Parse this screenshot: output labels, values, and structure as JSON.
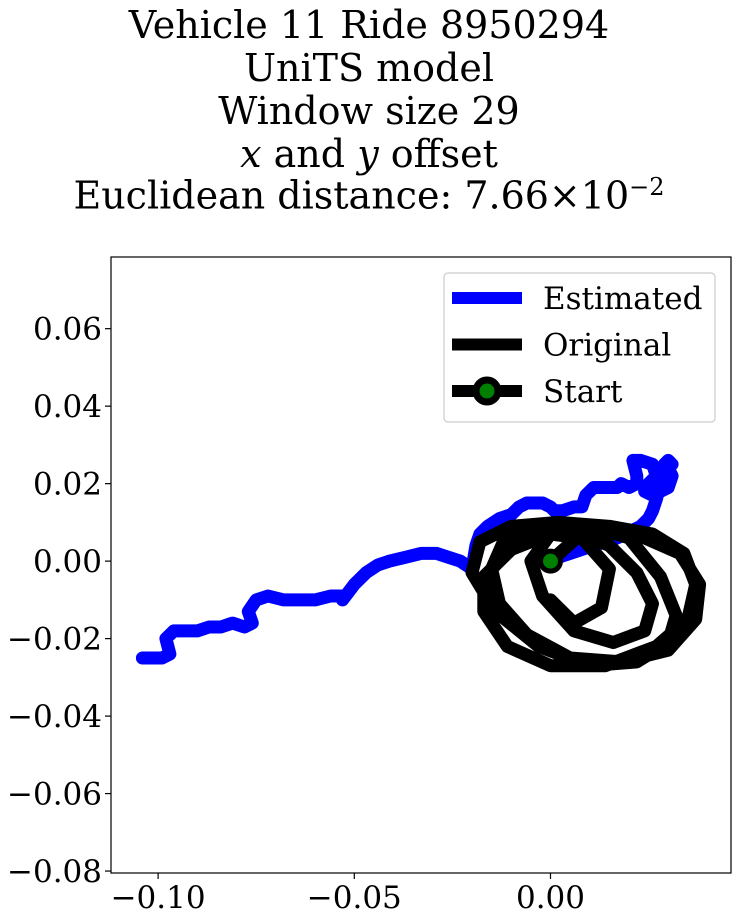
{
  "chart_data": {
    "type": "line",
    "title_lines": [
      "Vehicle 11 Ride 8950294",
      "UniTS model",
      "Window size 29",
      {
        "pre_math": "x",
        "middle": " and ",
        "post_math": "y",
        "suffix": " offset"
      },
      {
        "text": "Euclidean distance: 7.66×10",
        "sup": "−2"
      }
    ],
    "xlabel": "",
    "ylabel": "",
    "xlim": [
      -0.112,
      0.046
    ],
    "ylim": [
      -0.0805,
      0.0785
    ],
    "x_ticks": [
      -0.1,
      -0.05,
      0.0
    ],
    "x_tick_labels": [
      "−0.10",
      "−0.05",
      "0.00"
    ],
    "y_ticks": [
      0.06,
      0.04,
      0.02,
      0.0,
      -0.02,
      -0.04,
      -0.06,
      -0.08
    ],
    "y_tick_labels": [
      "0.06",
      "0.04",
      "0.02",
      "0.00",
      "−0.02",
      "−0.04",
      "−0.06",
      "−0.08"
    ],
    "grid": false,
    "legend_position": "top-right",
    "legend": [
      {
        "label": "Estimated",
        "color": "#0000ff",
        "style": "line"
      },
      {
        "label": "Original",
        "color": "#000000",
        "style": "line"
      },
      {
        "label": "Start",
        "color": "#000000",
        "marker_color": "#008000",
        "style": "line-marker"
      }
    ],
    "series": [
      {
        "name": "Estimated",
        "color": "#0000ff",
        "x": [
          -0.104,
          -0.099,
          -0.097,
          -0.098,
          -0.096,
          -0.093,
          -0.09,
          -0.087,
          -0.084,
          -0.081,
          -0.078,
          -0.076,
          -0.077,
          -0.075,
          -0.072,
          -0.068,
          -0.064,
          -0.06,
          -0.056,
          -0.053,
          -0.053,
          -0.05,
          -0.047,
          -0.044,
          -0.041,
          -0.037,
          -0.033,
          -0.029,
          -0.026,
          -0.023,
          -0.02,
          -0.019,
          -0.018,
          -0.016,
          -0.013,
          -0.01,
          -0.008,
          -0.006,
          -0.004,
          -0.002,
          0.0,
          0.001,
          0.003,
          0.006,
          0.008,
          0.009,
          0.011,
          0.014,
          0.017,
          0.018,
          0.02,
          0.022,
          0.022,
          0.021,
          0.023,
          0.026,
          0.027,
          0.025,
          0.024,
          0.026,
          0.028,
          0.03,
          0.031,
          0.03,
          0.029,
          0.03,
          0.031,
          0.029,
          0.028,
          0.027,
          0.026,
          0.025,
          0.024,
          0.023,
          0.021,
          0.019,
          0.017,
          0.014,
          0.011,
          0.008,
          0.005,
          0.002,
          0.0
        ],
        "y": [
          -0.025,
          -0.025,
          -0.024,
          -0.02,
          -0.018,
          -0.018,
          -0.018,
          -0.017,
          -0.017,
          -0.016,
          -0.017,
          -0.016,
          -0.013,
          -0.01,
          -0.009,
          -0.01,
          -0.01,
          -0.01,
          -0.009,
          -0.009,
          -0.01,
          -0.006,
          -0.003,
          -0.001,
          0.0,
          0.001,
          0.002,
          0.002,
          0.001,
          0.0,
          -0.002,
          0.004,
          0.007,
          0.009,
          0.011,
          0.012,
          0.014,
          0.015,
          0.015,
          0.015,
          0.014,
          0.013,
          0.013,
          0.014,
          0.014,
          0.017,
          0.019,
          0.019,
          0.019,
          0.02,
          0.019,
          0.02,
          0.022,
          0.026,
          0.026,
          0.025,
          0.022,
          0.02,
          0.018,
          0.017,
          0.018,
          0.019,
          0.022,
          0.024,
          0.025,
          0.026,
          0.025,
          0.023,
          0.02,
          0.016,
          0.013,
          0.011,
          0.01,
          0.009,
          0.008,
          0.007,
          0.006,
          0.005,
          0.004,
          0.003,
          0.002,
          0.001,
          0.0
        ]
      },
      {
        "name": "Original",
        "color": "#000000",
        "x": [
          0.0,
          0.01,
          0.02,
          0.028,
          0.032,
          0.03,
          0.022,
          0.01,
          -0.003,
          -0.014,
          -0.02,
          -0.018,
          -0.01,
          0.002,
          0.015,
          0.026,
          0.034,
          0.037,
          0.035,
          0.027,
          0.014,
          0.0,
          -0.011,
          -0.017,
          -0.017,
          -0.01,
          0.0,
          0.012,
          0.024,
          0.033,
          0.038,
          0.037,
          0.03,
          0.018,
          0.005,
          -0.006,
          -0.013,
          -0.015,
          -0.012,
          -0.004,
          0.006,
          0.015,
          0.022,
          0.026,
          0.024,
          0.016,
          0.006,
          -0.002,
          -0.005,
          0.0,
          0.008,
          0.015,
          0.013,
          0.006,
          0.0
        ],
        "y": [
          0.0,
          0.009,
          0.006,
          -0.004,
          -0.014,
          -0.021,
          -0.026,
          -0.027,
          -0.022,
          -0.013,
          -0.003,
          0.005,
          0.009,
          0.01,
          0.009,
          0.007,
          0.002,
          -0.006,
          -0.015,
          -0.022,
          -0.027,
          -0.027,
          -0.022,
          -0.013,
          -0.004,
          0.003,
          0.007,
          0.008,
          0.006,
          0.002,
          -0.006,
          -0.015,
          -0.023,
          -0.026,
          -0.025,
          -0.019,
          -0.011,
          -0.002,
          0.005,
          0.008,
          0.008,
          0.004,
          -0.003,
          -0.011,
          -0.018,
          -0.021,
          -0.018,
          -0.009,
          0.0,
          0.007,
          0.006,
          -0.002,
          -0.012,
          -0.016,
          -0.01
        ]
      }
    ],
    "start_point": {
      "x": 0.0,
      "y": 0.0
    }
  }
}
